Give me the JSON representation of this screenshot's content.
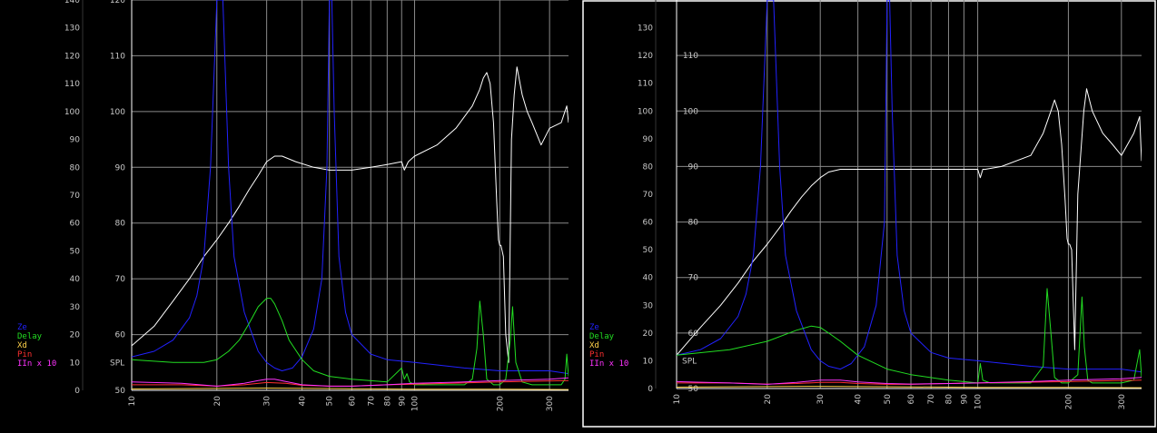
{
  "colors": {
    "background": "#000000",
    "grid": "#8a8a8a",
    "frame": "#ffffff",
    "tick_text": "#c8c8c8",
    "spl": "#ffffff",
    "ze": "#2222ff",
    "delay": "#22dd22",
    "xd": "#ffd24a",
    "pin": "#ff3030",
    "iin": "#ff33ff"
  },
  "chart_data": [
    {
      "type": "line",
      "xscale": "log",
      "xlim": [
        10,
        350
      ],
      "x_ticks": [
        10,
        20,
        30,
        40,
        50,
        60,
        70,
        80,
        90,
        100,
        200,
        300
      ],
      "x_tick_labels": [
        "10",
        "20",
        "30",
        "40",
        "50",
        "60",
        "70",
        "80",
        "90",
        "100",
        "200",
        "300"
      ],
      "left_ylim": [
        0,
        140
      ],
      "left_ticks": [
        "0",
        "10",
        "20",
        "30",
        "40",
        "50",
        "60",
        "70",
        "80",
        "90",
        "100",
        "110",
        "120",
        "130",
        "140"
      ],
      "spl_ylim": [
        50,
        120
      ],
      "spl_ticks": [
        "50",
        "60",
        "70",
        "80",
        "90",
        "100",
        "110",
        "120"
      ],
      "spl_axis_label": "SPL",
      "grid": true,
      "legend": [
        "Ze",
        "Delay",
        "Xd",
        "Pin",
        "IIn x 10"
      ],
      "legend_position": "left",
      "series": [
        {
          "name": "SPL",
          "axis": "spl",
          "x": [
            10,
            12,
            14,
            16,
            18,
            20,
            22,
            24,
            26,
            28,
            30,
            32,
            34,
            38,
            44,
            50,
            60,
            70,
            80,
            90,
            92,
            95,
            100,
            120,
            140,
            160,
            170,
            175,
            180,
            185,
            190,
            195,
            198,
            200,
            202,
            206,
            210,
            215,
            220,
            225,
            230,
            240,
            250,
            260,
            280,
            300,
            330,
            345,
            350
          ],
          "y": [
            58,
            61.5,
            66,
            70,
            74,
            77,
            80,
            83,
            86,
            88.5,
            91,
            92,
            92,
            91,
            90,
            89.5,
            89.5,
            90,
            90.5,
            91,
            89.5,
            91,
            92,
            94,
            97,
            101,
            104,
            106,
            107,
            105,
            98,
            84,
            77,
            76,
            76,
            74,
            60,
            55,
            95,
            103,
            108,
            103,
            100,
            98,
            94,
            97,
            98,
            101,
            98
          ]
        },
        {
          "name": "Ze",
          "axis": "left",
          "x": [
            10,
            12,
            14,
            16,
            17,
            18,
            19,
            20,
            21,
            22,
            23,
            25,
            28,
            30,
            32,
            34,
            37,
            40,
            44,
            47,
            49,
            50,
            51,
            52,
            54,
            57,
            60,
            70,
            80,
            100,
            150,
            200,
            300,
            350
          ],
          "y": [
            12,
            14,
            18,
            26,
            34,
            48,
            80,
            140,
            140,
            80,
            48,
            28,
            14,
            10,
            8,
            7,
            8,
            12,
            22,
            40,
            80,
            140,
            140,
            100,
            48,
            28,
            20,
            13,
            11,
            10,
            8,
            7,
            7,
            6
          ]
        },
        {
          "name": "Delay",
          "axis": "left",
          "x": [
            10,
            14,
            18,
            20,
            22,
            24,
            26,
            28,
            30,
            31,
            32,
            34,
            36,
            40,
            44,
            50,
            60,
            80,
            90,
            92,
            94,
            96,
            100,
            120,
            150,
            160,
            166,
            170,
            175,
            180,
            190,
            200,
            210,
            218,
            222,
            228,
            240,
            260,
            300,
            330,
            340,
            345,
            350
          ],
          "y": [
            11,
            10,
            10,
            11,
            14,
            18,
            24,
            30,
            33,
            33,
            31,
            25,
            18,
            11,
            7,
            5,
            4,
            3,
            8,
            4,
            6,
            3,
            2,
            2,
            2,
            4,
            15,
            32,
            20,
            4,
            2,
            2,
            4,
            18,
            30,
            10,
            3,
            2,
            2,
            2,
            4,
            13,
            5
          ]
        },
        {
          "name": "Xd",
          "axis": "left",
          "x": [
            10,
            30,
            60,
            100,
            200,
            350
          ],
          "y": [
            0.5,
            0.8,
            0.6,
            0.4,
            0.4,
            0.3
          ]
        },
        {
          "name": "Pin",
          "axis": "left",
          "x": [
            10,
            15,
            20,
            25,
            30,
            35,
            40,
            50,
            60,
            80,
            100,
            200,
            350
          ],
          "y": [
            2,
            2,
            1.5,
            2,
            2.8,
            2.5,
            1.8,
            1.5,
            1.5,
            2,
            2.2,
            3,
            3.5
          ]
        },
        {
          "name": "IIn x 10",
          "axis": "left",
          "x": [
            10,
            15,
            20,
            25,
            28,
            30,
            32,
            35,
            40,
            50,
            60,
            80,
            100,
            150,
            200,
            300,
            350
          ],
          "y": [
            3,
            2.5,
            1.5,
            2.5,
            3.5,
            4,
            4,
            3.2,
            2,
            1.5,
            1.5,
            2,
            2.5,
            3,
            3.5,
            4,
            4.5
          ]
        }
      ]
    },
    {
      "type": "line",
      "xscale": "log",
      "xlim": [
        10,
        350
      ],
      "x_ticks": [
        10,
        20,
        30,
        40,
        50,
        60,
        70,
        80,
        90,
        100,
        200,
        300
      ],
      "x_tick_labels": [
        "10",
        "20",
        "30",
        "40",
        "50",
        "60",
        "70",
        "80",
        "90",
        "100",
        "200",
        "300"
      ],
      "left_ylim": [
        0,
        140
      ],
      "left_ticks": [
        "0",
        "10",
        "20",
        "30",
        "40",
        "50",
        "60",
        "70",
        "80",
        "90",
        "100",
        "110",
        "120",
        "130"
      ],
      "spl_ylim": [
        50,
        120
      ],
      "spl_ticks": [
        "50",
        "60",
        "70",
        "80",
        "90",
        "100",
        "110"
      ],
      "spl_axis_label": "SPL",
      "grid": true,
      "legend": [
        "Ze",
        "Delay",
        "Xd",
        "Pin",
        "IIn x 10"
      ],
      "legend_position": "left",
      "series": [
        {
          "name": "SPL",
          "axis": "spl",
          "x": [
            10,
            12,
            14,
            16,
            18,
            20,
            22,
            24,
            26,
            28,
            30,
            32,
            35,
            40,
            50,
            60,
            80,
            100,
            102,
            104,
            106,
            120,
            150,
            165,
            175,
            180,
            185,
            190,
            195,
            198,
            200,
            202,
            205,
            210,
            215,
            225,
            230,
            240,
            260,
            280,
            300,
            330,
            345,
            350
          ],
          "y": [
            56,
            61,
            65,
            69,
            73,
            76,
            79,
            82,
            84.5,
            86.5,
            88,
            89,
            89.5,
            89.5,
            89.5,
            89.5,
            89.5,
            89.5,
            88,
            89.5,
            89.5,
            90,
            92,
            96,
            100,
            102,
            100,
            94,
            84,
            77,
            76,
            76,
            75,
            57,
            85,
            100,
            104,
            100,
            96,
            94,
            92,
            96,
            99,
            91
          ]
        },
        {
          "name": "Ze",
          "axis": "left",
          "x": [
            10,
            12,
            14,
            16,
            17,
            18,
            19,
            20,
            21,
            22,
            23,
            25,
            28,
            30,
            32,
            35,
            38,
            42,
            46,
            49,
            50,
            51,
            52,
            54,
            57,
            60,
            70,
            80,
            100,
            150,
            200,
            300,
            350
          ],
          "y": [
            12,
            14,
            18,
            26,
            34,
            48,
            80,
            140,
            140,
            80,
            48,
            28,
            14,
            10,
            8,
            7,
            9,
            15,
            30,
            60,
            140,
            140,
            100,
            48,
            28,
            20,
            13,
            11,
            10,
            8,
            7,
            7,
            6
          ]
        },
        {
          "name": "Delay",
          "axis": "left",
          "x": [
            10,
            15,
            20,
            25,
            28,
            30,
            32,
            35,
            40,
            50,
            60,
            80,
            90,
            100,
            102,
            104,
            110,
            150,
            165,
            170,
            175,
            180,
            190,
            200,
            215,
            222,
            226,
            232,
            240,
            260,
            300,
            330,
            345,
            350
          ],
          "y": [
            12,
            14,
            17,
            21,
            22.5,
            22,
            20,
            17,
            12,
            7,
            5,
            3,
            2.5,
            2,
            9,
            3,
            2,
            2,
            8,
            36,
            20,
            4,
            2,
            2,
            5,
            33,
            15,
            3,
            2,
            2,
            2,
            3,
            14,
            4
          ]
        },
        {
          "name": "Xd",
          "axis": "left",
          "x": [
            10,
            30,
            60,
            100,
            200,
            350
          ],
          "y": [
            0.5,
            0.8,
            0.6,
            0.4,
            0.4,
            0.3
          ]
        },
        {
          "name": "Pin",
          "axis": "left",
          "x": [
            10,
            15,
            20,
            25,
            30,
            35,
            40,
            50,
            60,
            80,
            100,
            200,
            350
          ],
          "y": [
            2,
            2,
            1.6,
            1.8,
            2.2,
            2.2,
            1.8,
            1.5,
            1.5,
            1.8,
            2,
            2.5,
            3
          ]
        },
        {
          "name": "IIn x 10",
          "axis": "left",
          "x": [
            10,
            15,
            20,
            25,
            30,
            35,
            40,
            50,
            60,
            80,
            100,
            150,
            200,
            300,
            350
          ],
          "y": [
            2.5,
            2,
            1.5,
            2.2,
            3,
            3,
            2.4,
            1.8,
            1.6,
            1.8,
            2,
            2.5,
            3,
            3.5,
            4
          ]
        }
      ]
    }
  ]
}
